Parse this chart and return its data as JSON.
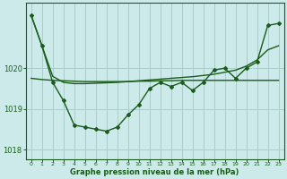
{
  "xlabel": "Graphe pression niveau de la mer (hPa)",
  "background_color": "#cceaea",
  "grid_color": "#aacccc",
  "line_color": "#1a5c1a",
  "ylim": [
    1017.75,
    1021.6
  ],
  "yticks": [
    1018,
    1019,
    1020
  ],
  "xlim": [
    -0.5,
    23.5
  ],
  "xticks": [
    0,
    1,
    2,
    3,
    4,
    5,
    6,
    7,
    8,
    9,
    10,
    11,
    12,
    13,
    14,
    15,
    16,
    17,
    18,
    19,
    20,
    21,
    22,
    23
  ],
  "smooth_line_x": [
    0,
    1,
    2,
    3,
    4,
    5,
    6,
    7,
    8,
    9,
    10,
    11,
    12,
    13,
    14,
    15,
    16,
    17,
    18,
    19,
    20,
    21,
    22,
    23
  ],
  "smooth_line_y": [
    1021.3,
    1020.55,
    1019.8,
    1019.65,
    1019.62,
    1019.62,
    1019.63,
    1019.64,
    1019.65,
    1019.67,
    1019.69,
    1019.71,
    1019.73,
    1019.75,
    1019.77,
    1019.79,
    1019.82,
    1019.85,
    1019.9,
    1019.95,
    1020.05,
    1020.2,
    1020.45,
    1020.55
  ],
  "flat_line_x": [
    0,
    1,
    2,
    3,
    4,
    5,
    6,
    7,
    8,
    9,
    10,
    11,
    12,
    13,
    14,
    15,
    16,
    17,
    18,
    19,
    20,
    21,
    22,
    23
  ],
  "flat_line_y": [
    1019.75,
    1019.72,
    1019.7,
    1019.69,
    1019.68,
    1019.67,
    1019.67,
    1019.67,
    1019.67,
    1019.67,
    1019.68,
    1019.68,
    1019.69,
    1019.69,
    1019.7,
    1019.7,
    1019.7,
    1019.7,
    1019.7,
    1019.7,
    1019.7,
    1019.7,
    1019.7,
    1019.7
  ],
  "measured_x": [
    0,
    1,
    2,
    3,
    4,
    5,
    6,
    7,
    8,
    9,
    10,
    11,
    12,
    13,
    14,
    15,
    16,
    17,
    18,
    19,
    20,
    21,
    22,
    23
  ],
  "measured_y": [
    1021.3,
    1020.55,
    1019.65,
    1019.2,
    1018.6,
    1018.55,
    1018.5,
    1018.45,
    1018.55,
    1018.85,
    1019.1,
    1019.5,
    1019.65,
    1019.55,
    1019.65,
    1019.45,
    1019.65,
    1019.95,
    1020.0,
    1019.75,
    1020.0,
    1020.15,
    1021.05,
    1021.1
  ]
}
